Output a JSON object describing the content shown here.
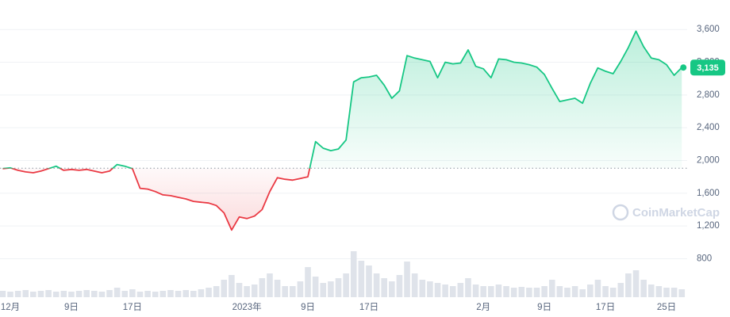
{
  "chart_data": {
    "type": "line",
    "watermark": "CoinMarketCap",
    "categories": [
      null,
      "12月",
      null,
      null,
      null,
      null,
      null,
      null,
      null,
      "9日",
      null,
      null,
      null,
      null,
      null,
      null,
      null,
      "17日",
      null,
      null,
      null,
      null,
      null,
      null,
      null,
      null,
      null,
      null,
      null,
      null,
      null,
      null,
      "2023年",
      null,
      null,
      null,
      null,
      null,
      null,
      null,
      "9日",
      null,
      null,
      null,
      null,
      null,
      null,
      null,
      "17日",
      null,
      null,
      null,
      null,
      null,
      null,
      null,
      null,
      null,
      null,
      null,
      null,
      null,
      null,
      "2月",
      null,
      null,
      null,
      null,
      null,
      null,
      null,
      "9日",
      null,
      null,
      null,
      null,
      null,
      null,
      null,
      "17日",
      null,
      null,
      null,
      null,
      null,
      null,
      null,
      "25日",
      null,
      null
    ],
    "series": [
      {
        "up_color": "#16c784",
        "down_color": "#ea3943",
        "values": [
          1900,
          1910,
          1880,
          1860,
          1850,
          1870,
          1900,
          1930,
          1880,
          1890,
          1880,
          1890,
          1870,
          1850,
          1870,
          1950,
          1930,
          1900,
          1660,
          1650,
          1620,
          1580,
          1570,
          1550,
          1530,
          1500,
          1490,
          1480,
          1450,
          1360,
          1150,
          1310,
          1290,
          1320,
          1400,
          1620,
          1790,
          1770,
          1760,
          1780,
          1800,
          2230,
          2150,
          2120,
          2140,
          2250,
          2960,
          3010,
          3020,
          3040,
          2920,
          2760,
          2850,
          3280,
          3250,
          3230,
          3210,
          3010,
          3200,
          3180,
          3190,
          3350,
          3150,
          3120,
          3010,
          3240,
          3230,
          3200,
          3190,
          3170,
          3140,
          3050,
          2880,
          2720,
          2740,
          2760,
          2700,
          2940,
          3130,
          3090,
          3060,
          3210,
          3380,
          3580,
          3390,
          3250,
          3230,
          3170,
          3040,
          3135
        ]
      }
    ],
    "volume": {
      "color": "#dfe3ea",
      "ylim": [
        0,
        100
      ],
      "values": [
        8,
        7,
        8,
        9,
        7,
        8,
        9,
        7,
        8,
        7,
        8,
        9,
        8,
        7,
        9,
        12,
        8,
        10,
        7,
        8,
        7,
        8,
        9,
        8,
        9,
        8,
        10,
        12,
        14,
        22,
        28,
        18,
        14,
        16,
        24,
        30,
        22,
        14,
        14,
        20,
        38,
        26,
        18,
        20,
        24,
        30,
        58,
        46,
        40,
        30,
        24,
        20,
        28,
        45,
        30,
        22,
        20,
        18,
        16,
        14,
        18,
        24,
        16,
        14,
        14,
        16,
        14,
        12,
        13,
        12,
        12,
        14,
        22,
        14,
        12,
        14,
        10,
        16,
        22,
        14,
        12,
        18,
        30,
        34,
        22,
        16,
        14,
        12,
        12,
        10
      ]
    },
    "baseline": 1905,
    "current_price": {
      "value": 3135,
      "label": "3,135"
    },
    "ylim": [
      330,
      3960
    ],
    "yticks": [
      {
        "value": 800,
        "label": "800"
      },
      {
        "value": 1200,
        "label": "1,200"
      },
      {
        "value": 1600,
        "label": "1,600"
      },
      {
        "value": 2000,
        "label": "2,000"
      },
      {
        "value": 2400,
        "label": "2,400"
      },
      {
        "value": 2800,
        "label": "2,800"
      },
      {
        "value": 3200,
        "label": "3,200"
      },
      {
        "value": 3600,
        "label": "3,600"
      }
    ],
    "grid": true
  }
}
